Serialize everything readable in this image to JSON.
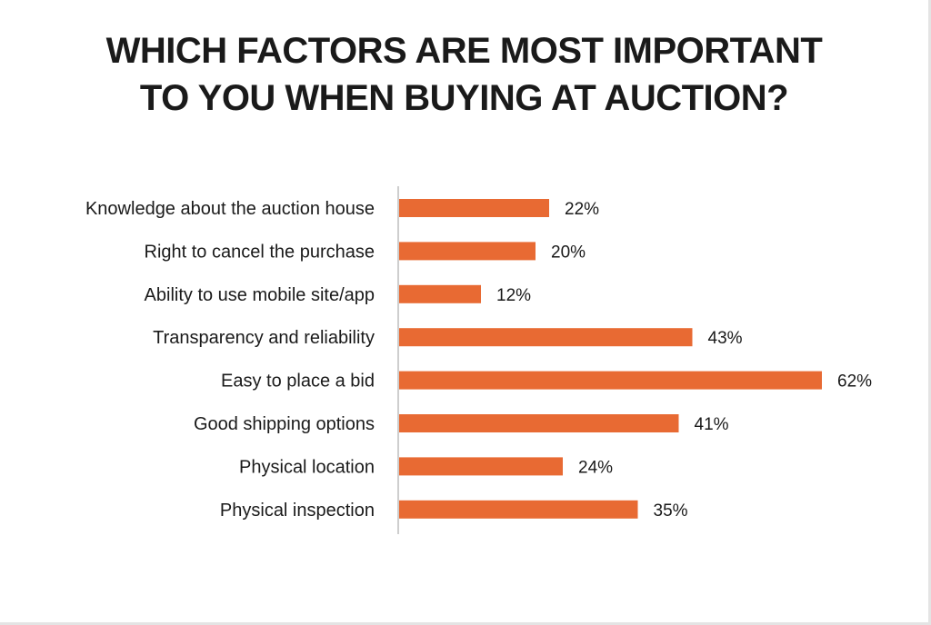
{
  "title_lines": [
    "WHICH FACTORS ARE MOST IMPORTANT",
    "TO YOU WHEN BUYING AT AUCTION?"
  ],
  "colors": {
    "bar": "#e86a33",
    "axis": "#bdbdbd"
  },
  "chart_data": {
    "type": "bar",
    "orientation": "horizontal",
    "title": "WHICH FACTORS ARE MOST IMPORTANT TO YOU WHEN BUYING AT AUCTION?",
    "categories": [
      "Knowledge about the auction house",
      "Right to cancel the purchase",
      "Ability to use mobile site/app",
      "Transparency and reliability",
      "Easy to place a bid",
      "Good shipping options",
      "Physical location",
      "Physical inspection"
    ],
    "values": [
      22,
      20,
      12,
      43,
      62,
      41,
      24,
      35
    ],
    "value_labels": [
      "22%",
      "20%",
      "12%",
      "43%",
      "62%",
      "41%",
      "24%",
      "35%"
    ],
    "unit": "%",
    "xlim": [
      0,
      62
    ],
    "grid": false,
    "legend": "none"
  }
}
